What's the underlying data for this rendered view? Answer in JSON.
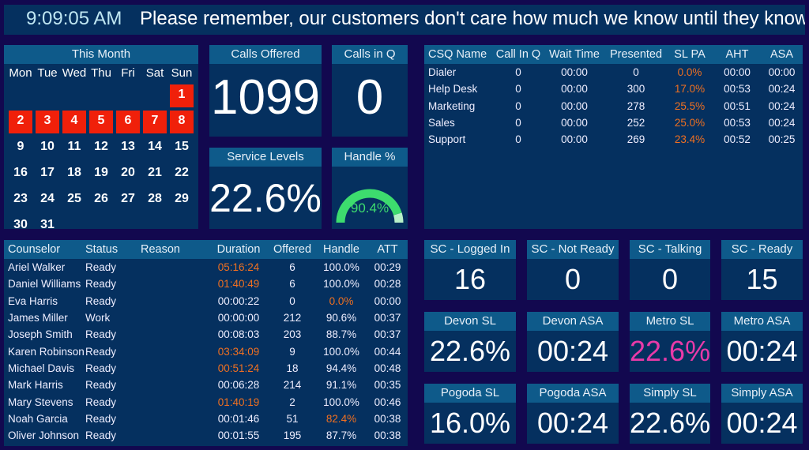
{
  "ticker": {
    "clock": "9:09:05 AM",
    "message": "Please remember, our customers don't care how much we know until they know how much we care."
  },
  "calendar": {
    "title": "This Month",
    "weekdays": [
      "Mon",
      "Tue",
      "Wed",
      "Thu",
      "Fri",
      "Sat",
      "Sun"
    ],
    "leading_blanks": 6,
    "days": 31,
    "highlighted_days": [
      1,
      2,
      3,
      4,
      5,
      6,
      7,
      8
    ],
    "highlight_color": "#f0200a"
  },
  "calls_offered": {
    "label": "Calls Offered",
    "value": "1099"
  },
  "calls_in_q": {
    "label": "Calls in Q",
    "value": "0"
  },
  "service_levels": {
    "label": "Service Levels",
    "value": "22.6%"
  },
  "handle": {
    "label": "Handle %",
    "value": "90.4%",
    "fraction": 0.904,
    "gauge_color": "#3ddc6e",
    "gauge_rest_color": "#b8f0c8"
  },
  "csq": {
    "columns": [
      "CSQ Name",
      "Call In Q",
      "Wait Time",
      "Presented",
      "SL PA",
      "AHT",
      "ASA"
    ],
    "rows": [
      [
        "Dialer",
        "0",
        "00:00",
        "0",
        "0.0%",
        "00:00",
        "00:00"
      ],
      [
        "Help Desk",
        "0",
        "00:00",
        "300",
        "17.0%",
        "00:53",
        "00:24"
      ],
      [
        "Marketing",
        "0",
        "00:00",
        "278",
        "25.5%",
        "00:51",
        "00:24"
      ],
      [
        "Sales",
        "0",
        "00:00",
        "252",
        "25.0%",
        "00:53",
        "00:24"
      ],
      [
        "Support",
        "0",
        "00:00",
        "269",
        "23.4%",
        "00:52",
        "00:25"
      ]
    ]
  },
  "agents": {
    "columns": [
      "Counselor",
      "Status",
      "Reason",
      "Duration",
      "Offered",
      "Handle",
      "ATT"
    ],
    "rows": [
      [
        "Ariel Walker",
        "Ready",
        "",
        "05:16:24",
        "6",
        "100.0%",
        "00:29"
      ],
      [
        "Daniel Williams",
        "Ready",
        "",
        "01:40:49",
        "6",
        "100.0%",
        "00:28"
      ],
      [
        "Eva Harris",
        "Ready",
        "",
        "00:00:22",
        "0",
        "0.0%",
        "00:00"
      ],
      [
        "James Miller",
        "Work",
        "",
        "00:00:00",
        "212",
        "90.6%",
        "00:37"
      ],
      [
        "Joseph Smith",
        "Ready",
        "",
        "00:08:03",
        "203",
        "88.7%",
        "00:37"
      ],
      [
        "Karen Robinson",
        "Ready",
        "",
        "03:34:09",
        "9",
        "100.0%",
        "00:44"
      ],
      [
        "Michael Davis",
        "Ready",
        "",
        "00:51:24",
        "18",
        "94.4%",
        "00:48"
      ],
      [
        "Mark Harris",
        "Ready",
        "",
        "00:06:28",
        "214",
        "91.1%",
        "00:35"
      ],
      [
        "Mary Stevens",
        "Ready",
        "",
        "01:40:19",
        "2",
        "100.0%",
        "00:46"
      ],
      [
        "Noah Garcia",
        "Ready",
        "",
        "00:01:46",
        "51",
        "82.4%",
        "00:38"
      ],
      [
        "Oliver Johnson",
        "Ready",
        "",
        "00:01:55",
        "195",
        "87.7%",
        "00:38"
      ]
    ],
    "alert_cells": [
      [
        0,
        3
      ],
      [
        1,
        3
      ],
      [
        2,
        5
      ],
      [
        5,
        3
      ],
      [
        6,
        3
      ],
      [
        8,
        3
      ],
      [
        9,
        5
      ]
    ]
  },
  "tiles": [
    {
      "label": "SC - Logged In",
      "value": "16"
    },
    {
      "label": "SC - Not Ready",
      "value": "0"
    },
    {
      "label": "SC - Talking",
      "value": "0"
    },
    {
      "label": "SC - Ready",
      "value": "15"
    },
    {
      "label": "Devon SL",
      "value": "22.6%"
    },
    {
      "label": "Devon ASA",
      "value": "00:24"
    },
    {
      "label": "Metro SL",
      "value": "22.6%",
      "color": "#e83aa8"
    },
    {
      "label": "Metro ASA",
      "value": "00:24"
    },
    {
      "label": "Pogoda SL",
      "value": "16.0%"
    },
    {
      "label": "Pogoda ASA",
      "value": "00:24"
    },
    {
      "label": "Simply SL",
      "value": "22.6%"
    },
    {
      "label": "Simply ASA",
      "value": "00:24"
    }
  ],
  "colors": {
    "alert": "#f07020",
    "background": "#12084f",
    "panel": "#05305f",
    "header": "#0e5a8a"
  }
}
